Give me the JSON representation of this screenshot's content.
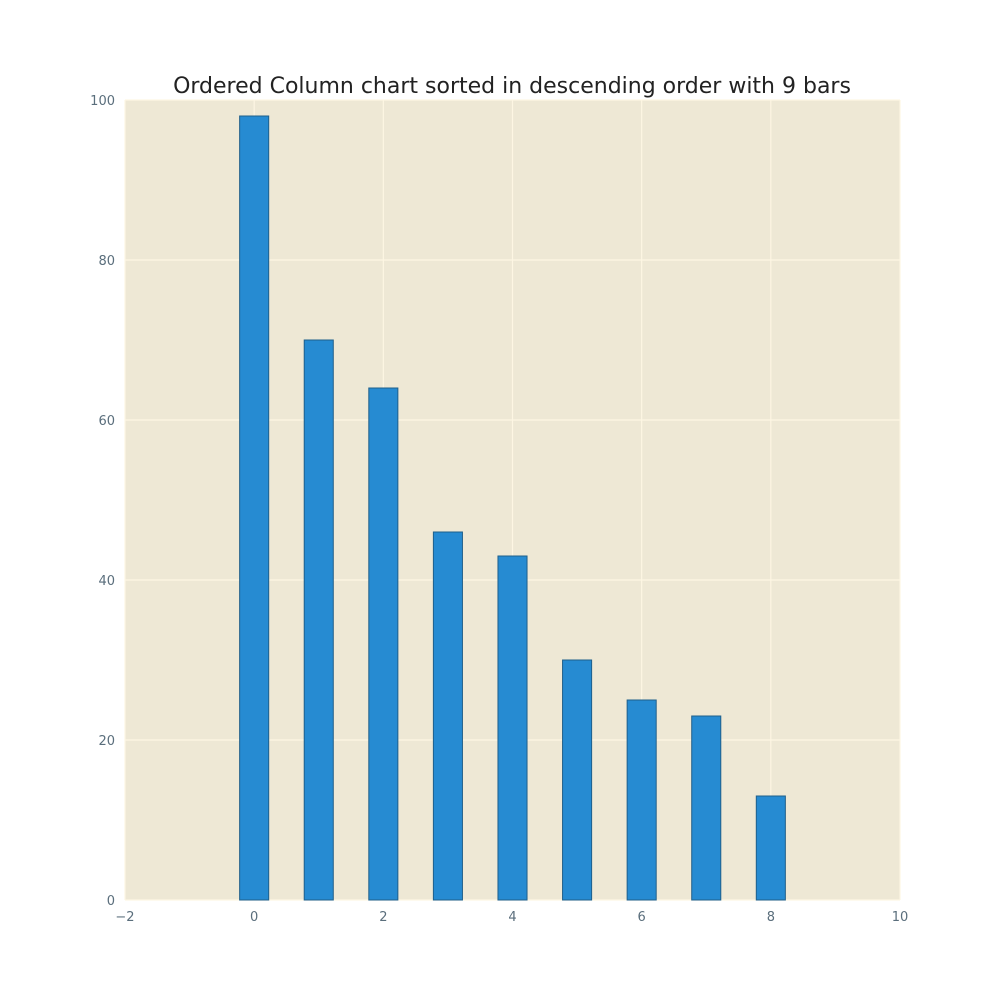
{
  "chart_data": {
    "type": "bar",
    "title": "Ordered Column chart sorted in descending order with 9 bars",
    "xlabel": "",
    "ylabel": "",
    "x": [
      0,
      1,
      2,
      3,
      4,
      5,
      6,
      7,
      8
    ],
    "values": [
      98,
      70,
      64,
      46,
      43,
      30,
      25,
      23,
      13
    ],
    "xlim": [
      -2,
      10
    ],
    "ylim": [
      0,
      100
    ],
    "xticks": [
      -2,
      0,
      2,
      4,
      6,
      8,
      10
    ],
    "xtick_labels": [
      "−2",
      "0",
      "2",
      "4",
      "6",
      "8",
      "10"
    ],
    "yticks": [
      0,
      20,
      40,
      60,
      80,
      100
    ],
    "ytick_labels": [
      "0",
      "20",
      "40",
      "60",
      "80",
      "100"
    ],
    "bar_width": 0.45,
    "grid": true,
    "legend": "none",
    "colors": {
      "bar_fill": "#268bd2",
      "bar_edge": "#1f5f8b",
      "plot_background": "#eee8d5",
      "grid": "#fdf6e3",
      "tick_text": "#5a6e7c",
      "title_text": "#222222"
    }
  }
}
